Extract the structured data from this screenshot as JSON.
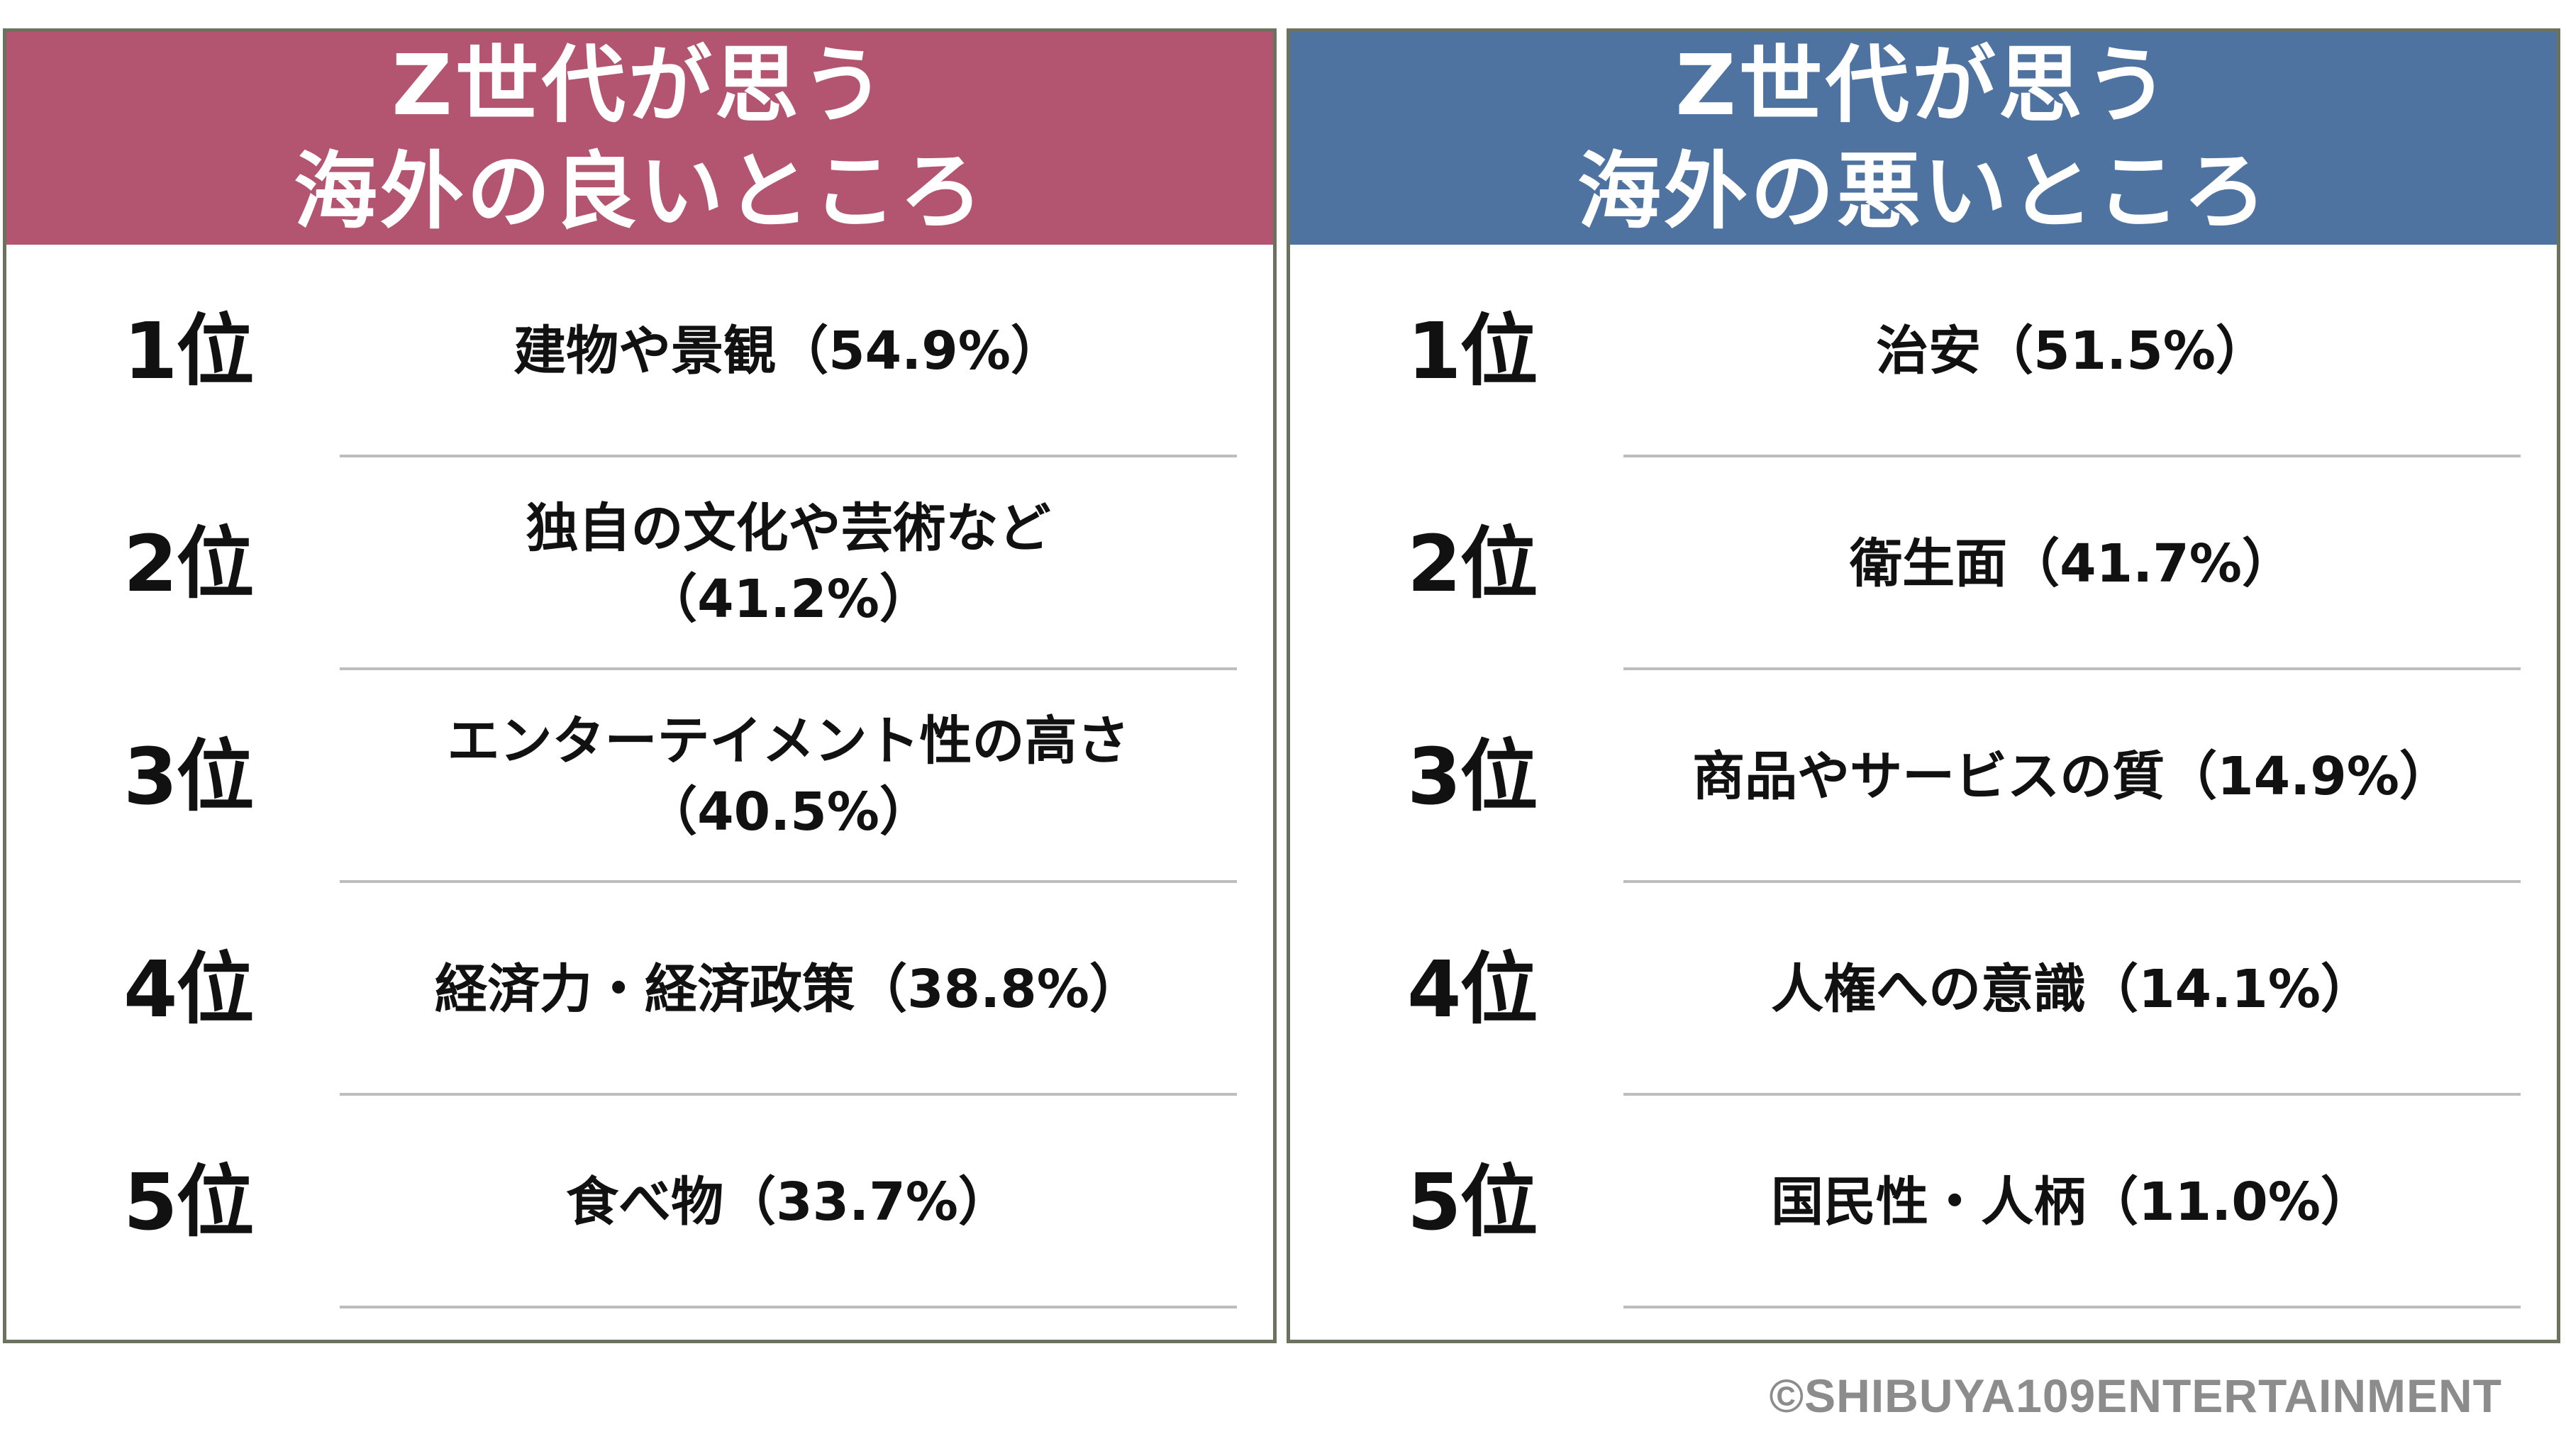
{
  "panels": {
    "good": {
      "header_line1": "Z世代が思う",
      "header_line2": "海外の良いところ",
      "header_color": "#b35571",
      "rows": [
        {
          "rank": "1位",
          "line1": "建物や景観（54.9%）",
          "line2": ""
        },
        {
          "rank": "2位",
          "line1": "独自の文化や芸術など",
          "line2": "（41.2%）"
        },
        {
          "rank": "3位",
          "line1": "エンターテイメント性の高さ",
          "line2": "（40.5%）"
        },
        {
          "rank": "4位",
          "line1": "経済力・経済政策（38.8%）",
          "line2": ""
        },
        {
          "rank": "5位",
          "line1": "食べ物（33.7%）",
          "line2": ""
        }
      ]
    },
    "bad": {
      "header_line1": "Z世代が思う",
      "header_line2": "海外の悪いところ",
      "header_color": "#4e73a1",
      "rows": [
        {
          "rank": "1位",
          "line1": "治安（51.5%）",
          "line2": ""
        },
        {
          "rank": "2位",
          "line1": "衛生面（41.7%）",
          "line2": ""
        },
        {
          "rank": "3位",
          "line1": "商品やサービスの質（14.9%）",
          "line2": ""
        },
        {
          "rank": "4位",
          "line1": "人権への意識（14.1%）",
          "line2": ""
        },
        {
          "rank": "5位",
          "line1": "国民性・人柄（11.0%）",
          "line2": ""
        }
      ]
    }
  },
  "credit": "©SHIBUYA109ENTERTAINMENT"
}
